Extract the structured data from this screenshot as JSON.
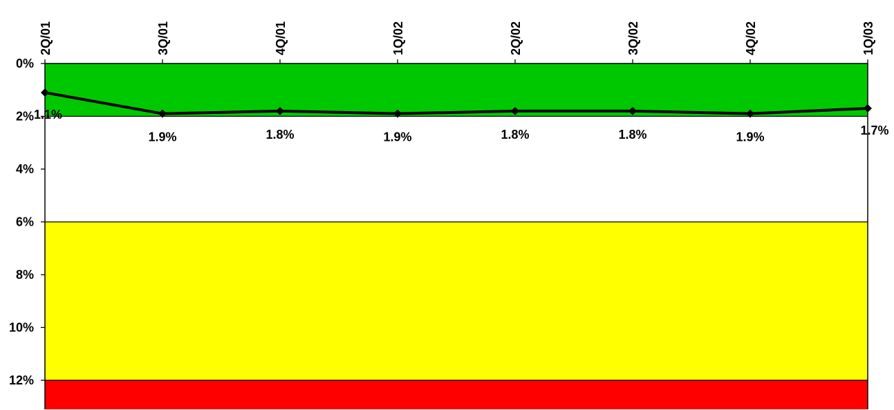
{
  "chart_data": {
    "type": "line",
    "title": "",
    "xlabel": "",
    "ylabel": "",
    "categories": [
      "2Q/01",
      "3Q/01",
      "4Q/01",
      "1Q/02",
      "2Q/02",
      "3Q/02",
      "4Q/02",
      "1Q/03"
    ],
    "series": [
      {
        "values": [
          1.1,
          1.9,
          1.8,
          1.9,
          1.8,
          1.8,
          1.9,
          1.7
        ],
        "labels": [
          "1.1%",
          "1.9%",
          "1.8%",
          "1.9%",
          "1.8%",
          "1.8%",
          "1.9%",
          "1.7%"
        ],
        "color": "#000000"
      }
    ],
    "ylim": [
      0,
      13.1
    ],
    "y_inverted": true,
    "y_ticks": [
      0,
      2,
      4,
      6,
      8,
      10,
      12
    ],
    "y_tick_labels": [
      "0%",
      "2%",
      "4%",
      "6%",
      "8%",
      "10%",
      "12%"
    ],
    "x_axis_position": "top",
    "x_tick_label_rotation": "vertical",
    "bands": [
      {
        "from": 0,
        "to": 2,
        "color": "#00c800"
      },
      {
        "from": 2,
        "to": 6,
        "color": "#ffffff"
      },
      {
        "from": 6,
        "to": 12,
        "color": "#ffff00"
      },
      {
        "from": 12,
        "to": 13.1,
        "color": "#ff0000"
      }
    ],
    "grid": false,
    "legend": "none"
  }
}
